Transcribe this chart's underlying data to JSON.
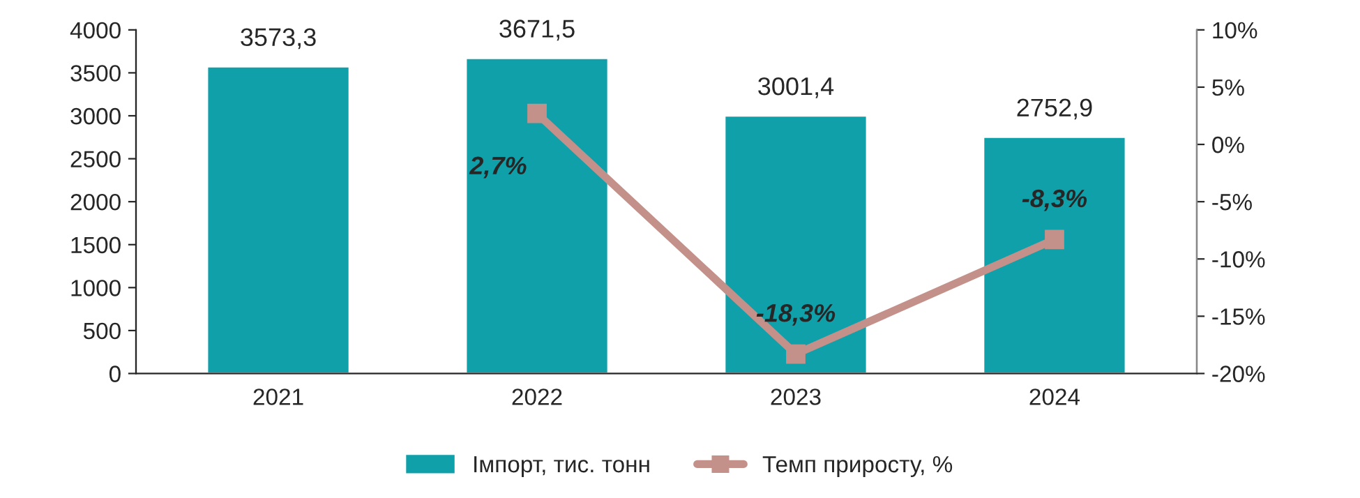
{
  "chart_data": {
    "type": "bar",
    "categories": [
      "2021",
      "2022",
      "2023",
      "2024"
    ],
    "series": [
      {
        "name": "Імпорт, тис. тонн",
        "color": "#0fa0aa",
        "values": [
          3573.3,
          3671.5,
          3001.4,
          2752.9
        ],
        "value_labels": [
          "3573,3",
          "3671,5",
          "3001,4",
          "2752,9"
        ]
      },
      {
        "name": "Темп приросту, %",
        "type": "line",
        "axis": "y2",
        "color": "#c4918a",
        "marker": "square",
        "values": [
          null,
          2.7,
          -18.3,
          -8.3
        ],
        "value_labels": [
          null,
          "2,7%",
          "-18,3%",
          "-8,3%"
        ]
      }
    ],
    "ylim": [
      0,
      4000
    ],
    "yticks": [
      0,
      500,
      1000,
      1500,
      2000,
      2500,
      3000,
      3500,
      4000
    ],
    "y2lim": [
      -20,
      10
    ],
    "y2ticks": [
      {
        "value": -20,
        "label": "-20%"
      },
      {
        "value": -15,
        "label": "-15%"
      },
      {
        "value": -10,
        "label": "-10%"
      },
      {
        "value": -5,
        "label": "-5%"
      },
      {
        "value": 0,
        "label": "0%"
      },
      {
        "value": 5,
        "label": "5%"
      },
      {
        "value": 10,
        "label": "10%"
      }
    ],
    "legend": "bottom",
    "grid": false
  }
}
